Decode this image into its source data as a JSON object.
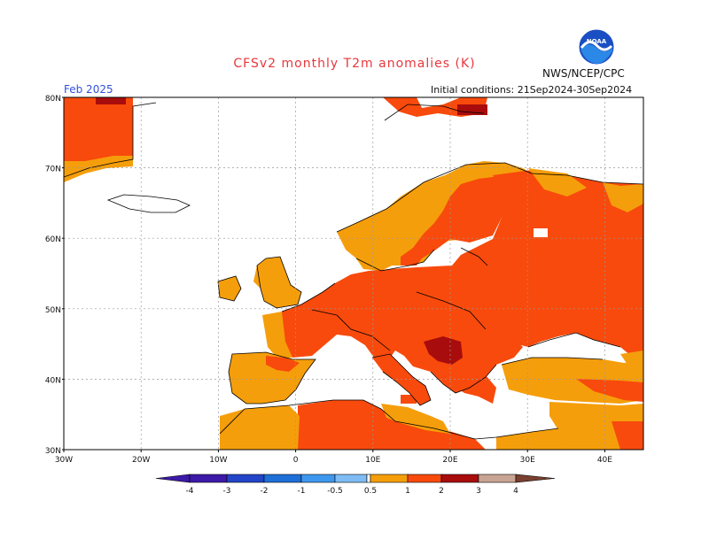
{
  "header": {
    "title": "CFSv2 monthly T2m anomalies (K)",
    "agency": "NWS/NCEP/CPC",
    "logo_text": "NOAA",
    "period": "Feb 2025",
    "initial_conditions": "Initial conditions: 21Sep2024-30Sep2024"
  },
  "map": {
    "lat_labels": [
      "80N",
      "70N",
      "60N",
      "50N",
      "40N",
      "30N"
    ],
    "lon_labels": [
      "30W",
      "20W",
      "10W",
      "0",
      "10E",
      "20E",
      "30E",
      "40E"
    ],
    "lat_range": [
      30,
      80
    ],
    "lon_range": [
      -30,
      45
    ],
    "grid": "dotted"
  },
  "legend": {
    "labels": [
      "-4",
      "-3",
      "-2",
      "-1",
      "-0.5",
      "0.5",
      "1",
      "2",
      "3",
      "4"
    ],
    "colors": {
      "neg4": "#3d1aa8",
      "neg3": "#2345c8",
      "neg2": "#1f6fd8",
      "neg1": "#3e97ee",
      "neg05": "#7fbcf4",
      "neutral": "#ffffff",
      "p05": "#f59e0b",
      "p1": "#f84a0c",
      "p2": "#a80c0c",
      "p3": "#c9a393",
      "p4": "#7a4030"
    }
  }
}
